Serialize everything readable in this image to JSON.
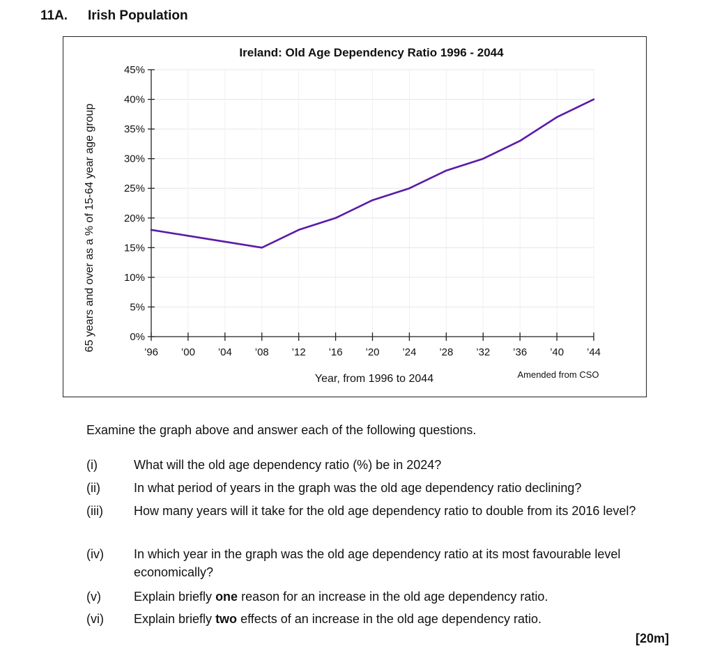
{
  "header": {
    "number": "11A.",
    "title": "Irish Population"
  },
  "chart_data": {
    "type": "line",
    "title": "Ireland: Old Age Dependency Ratio 1996 - 2044",
    "xlabel": "Year, from 1996 to 2044",
    "ylabel": "65 years and over as a % of 15-64 year age group",
    "source": "Amended from CSO",
    "x_tick_labels": [
      "’96",
      "’00",
      "’04",
      "’08",
      "’12",
      "’16",
      "’20",
      "’24",
      "’28",
      "’32",
      "’36",
      "’40",
      "’44"
    ],
    "y_tick_labels": [
      "0%",
      "5%",
      "10%",
      "15%",
      "20%",
      "25%",
      "30%",
      "35%",
      "40%",
      "45%"
    ],
    "xlim": [
      1996,
      2044
    ],
    "ylim": [
      0,
      45
    ],
    "grid": true,
    "line_color": "#5b1aa8",
    "series": [
      {
        "x": [
          1996,
          2000,
          2004,
          2008,
          2012,
          2016,
          2020,
          2024,
          2028,
          2032,
          2036,
          2040,
          2044
        ],
        "values": [
          18,
          17,
          16,
          15,
          18,
          20,
          23,
          25,
          28,
          30,
          33,
          37,
          40
        ]
      }
    ]
  },
  "questions": {
    "intro": "Examine the graph above and answer each of the following questions.",
    "items": [
      {
        "num": "(i)",
        "text": "What will the old age dependency ratio (%) be in 2024?"
      },
      {
        "num": "(ii)",
        "text": "In what period of years in the graph was the old age dependency ratio declining?"
      },
      {
        "num": "(iii)",
        "text": "How many years will it take for the old age dependency ratio to double from its 2016 level?"
      },
      {
        "num": "(iv)",
        "text": "In which year in the graph was the old age dependency ratio at its most favourable level economically?"
      },
      {
        "num": "(v)",
        "pre": "Explain briefly ",
        "bold": "one",
        "post": " reason for an increase in the old age dependency ratio."
      },
      {
        "num": "(vi)",
        "pre": "Explain briefly ",
        "bold": "two",
        "post": " effects of an increase in the old age dependency ratio."
      }
    ],
    "marks": "[20m]"
  }
}
